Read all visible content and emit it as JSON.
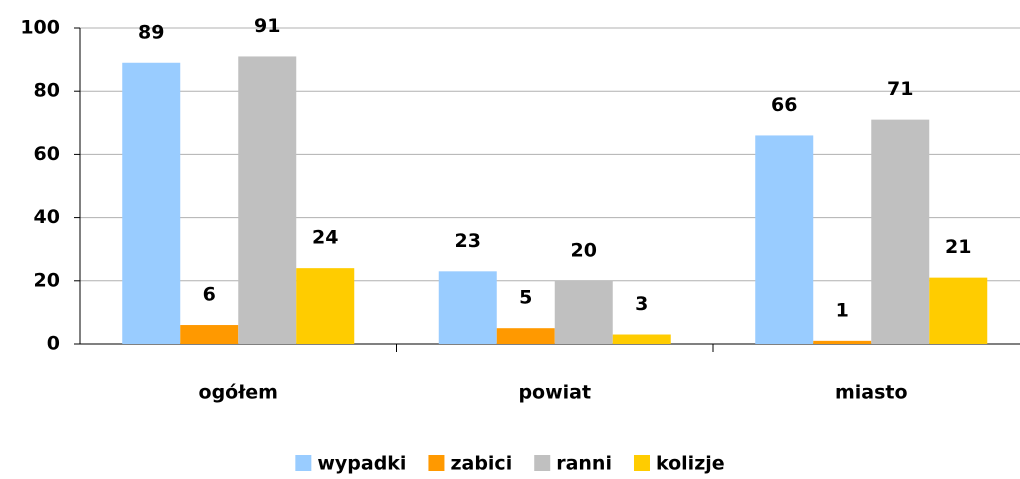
{
  "chart_data": {
    "type": "bar",
    "categories": [
      "ogółem",
      "powiat",
      "miasto"
    ],
    "series": [
      {
        "name": "wypadki",
        "color": "#99ccff",
        "values": [
          89,
          23,
          66
        ]
      },
      {
        "name": "zabici",
        "color": "#ff9900",
        "values": [
          6,
          5,
          1
        ]
      },
      {
        "name": "ranni",
        "color": "#c0c0c0",
        "values": [
          91,
          20,
          71
        ]
      },
      {
        "name": "kolizje",
        "color": "#ffcc00",
        "values": [
          24,
          3,
          21
        ]
      }
    ],
    "ylim": [
      0,
      100
    ],
    "yticks": [
      0,
      20,
      40,
      60,
      80,
      100
    ],
    "grid": true,
    "legend": "bottom"
  }
}
